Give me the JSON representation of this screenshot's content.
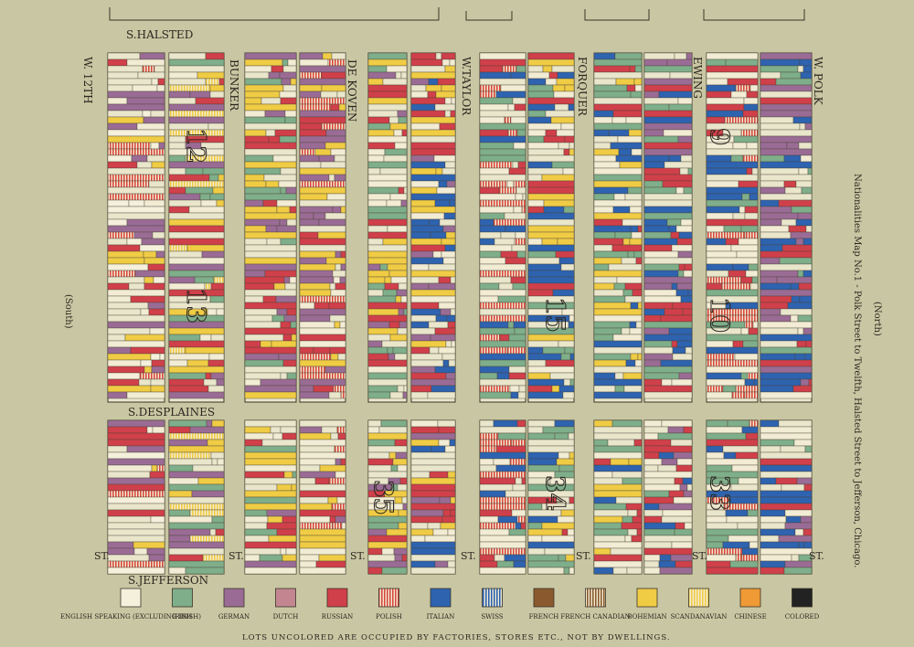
{
  "title": "Nationalities Map No.1 - Polk Street to Twelfth, Halsted Street to Jefferson, Chicago.",
  "north_label": "(North)",
  "south_label": "(South)",
  "streets": {
    "halsted": "S.HALSTED",
    "desplaines": "S.DESPLAINES",
    "jefferson": "S.JEFFERSON",
    "w12th": "W. 12TH",
    "bunker": "BUNKER",
    "dekoven": "DE KOVEN",
    "wtaylor": "W.TAYLOR",
    "forquer": "FORQUER",
    "ewing": "EWING",
    "wpolk": "W. POLK",
    "st": "ST."
  },
  "block_numbers": [
    "12",
    "13",
    "15",
    "35",
    "34",
    "9",
    "10",
    "33"
  ],
  "legend": [
    {
      "label": "ENGLISH SPEAKING (EXCLUDING IRISH)",
      "color": "#f4f0dc"
    },
    {
      "label": "IRISH",
      "color": "#7fae8a"
    },
    {
      "label": "GERMAN",
      "color": "#9a6c95"
    },
    {
      "label": "DUTCH",
      "color": "#c38690"
    },
    {
      "label": "RUSSIAN",
      "color": "#d0404a"
    },
    {
      "label": "POLISH",
      "color": "#d84a3e",
      "pattern": "stripes"
    },
    {
      "label": "ITALIAN",
      "color": "#2e63b0"
    },
    {
      "label": "SWISS",
      "color": "#2e63b0",
      "pattern": "stripes"
    },
    {
      "label": "FRENCH",
      "color": "#8a5a2e"
    },
    {
      "label": "FRENCH CANADIAN",
      "color": "#8a5a2e",
      "pattern": "stripes"
    },
    {
      "label": "BOHEMIAN",
      "color": "#f0cc45"
    },
    {
      "label": "SCANDANAVIAN",
      "color": "#f0cc45",
      "pattern": "stripes"
    },
    {
      "label": "CHINESE",
      "color": "#ef9a35"
    },
    {
      "label": "COLORED",
      "color": "#222222"
    }
  ],
  "footnote": "LOTS UNCOLORED ARE OCCUPIED BY FACTORIES, STORES ETC., NOT BY DWELLINGS.",
  "colors": {
    "paper": "#c9c7a3",
    "block": "#e9e6cc",
    "line": "#3a3428",
    "text": "#2a2620"
  }
}
